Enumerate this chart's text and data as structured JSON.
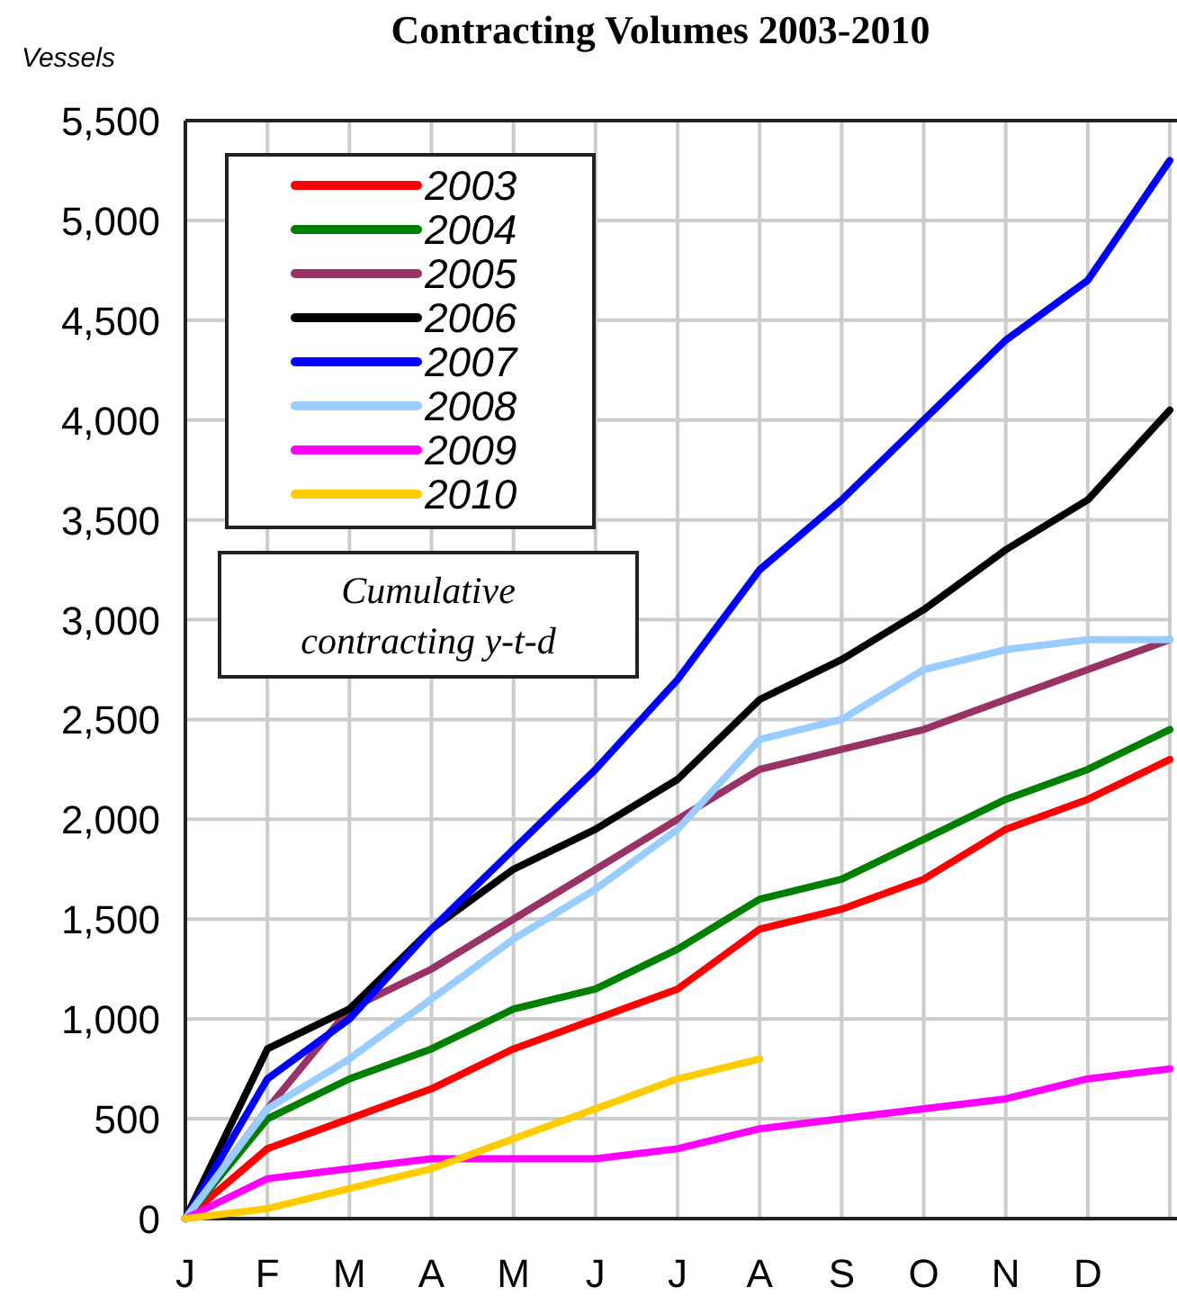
{
  "chart_data": {
    "type": "line",
    "title": "Contracting Volumes 2003-2010",
    "ylabel": "Vessels",
    "categories": [
      "J",
      "F",
      "M",
      "A",
      "M",
      "J",
      "J",
      "A",
      "S",
      "O",
      "N",
      "D",
      null
    ],
    "ylim": [
      0,
      5500
    ],
    "yticks": [
      {
        "value": 0,
        "label": "0"
      },
      {
        "value": 500,
        "label": "500"
      },
      {
        "value": 1000,
        "label": "1,000"
      },
      {
        "value": 1500,
        "label": "1,500"
      },
      {
        "value": 2000,
        "label": "2,000"
      },
      {
        "value": 2500,
        "label": "2,500"
      },
      {
        "value": 3000,
        "label": "3,000"
      },
      {
        "value": 3500,
        "label": "3,500"
      },
      {
        "value": 4000,
        "label": "4,000"
      },
      {
        "value": 4500,
        "label": "4,500"
      },
      {
        "value": 5000,
        "label": "5,000"
      },
      {
        "value": 5500,
        "label": "5,500"
      }
    ],
    "grid": true,
    "legend": "top left",
    "marker": "none",
    "line_style": "solid",
    "annotations": [
      "Cumulative contracting y-t-d"
    ],
    "series": [
      {
        "name": "2003",
        "color": "#ff0000",
        "values": [
          0,
          350,
          500,
          650,
          850,
          1000,
          1150,
          1450,
          1550,
          1700,
          1950,
          2100,
          2300
        ]
      },
      {
        "name": "2004",
        "color": "#008000",
        "values": [
          0,
          500,
          700,
          850,
          1050,
          1150,
          1350,
          1600,
          1700,
          1900,
          2100,
          2250,
          2450
        ]
      },
      {
        "name": "2005",
        "color": "#993366",
        "values": [
          0,
          550,
          1050,
          1250,
          1500,
          1750,
          2000,
          2250,
          2350,
          2450,
          2600,
          2750,
          2900
        ]
      },
      {
        "name": "2006",
        "color": "#000000",
        "values": [
          0,
          850,
          1050,
          1450,
          1750,
          1950,
          2200,
          2600,
          2800,
          3050,
          3350,
          3600,
          4050
        ]
      },
      {
        "name": "2007",
        "color": "#0000ff",
        "values": [
          0,
          700,
          1000,
          1450,
          1850,
          2250,
          2700,
          3250,
          3600,
          4000,
          4400,
          4700,
          5300
        ]
      },
      {
        "name": "2008",
        "color": "#99ccff",
        "values": [
          0,
          550,
          800,
          1100,
          1400,
          1650,
          1950,
          2400,
          2500,
          2750,
          2850,
          2900,
          2900
        ]
      },
      {
        "name": "2009",
        "color": "#ff00ff",
        "values": [
          0,
          200,
          250,
          300,
          300,
          300,
          350,
          450,
          500,
          550,
          600,
          700,
          750
        ]
      },
      {
        "name": "2010",
        "color": "#ffcc00",
        "values": [
          0,
          50,
          150,
          250,
          400,
          550,
          700,
          800,
          null,
          null,
          null,
          null,
          null
        ]
      }
    ]
  }
}
